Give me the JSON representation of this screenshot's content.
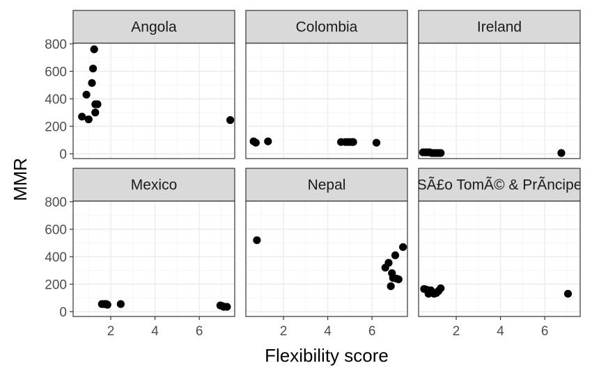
{
  "chart_data": {
    "type": "scatter",
    "facet": "wrap",
    "ncol": 3,
    "xlabel": "Flexibility score",
    "ylabel": "MMR",
    "xlim": [
      0.3,
      7.6
    ],
    "ylim": [
      -40,
      800
    ],
    "x_ticks": [
      2,
      4,
      6
    ],
    "y_ticks": [
      0,
      200,
      400,
      600,
      800
    ],
    "grid": true,
    "shared_axes": true,
    "colors": {
      "point": "#000000",
      "strip_fill": "#d9d9d9",
      "panel_border": "#333333",
      "grid_major": "#ebebeb",
      "grid_minor": "#f5f5f5"
    },
    "facets": [
      {
        "label": "Angola",
        "x": [
          0.7,
          0.9,
          1.0,
          1.15,
          1.2,
          1.25,
          1.3,
          1.3,
          1.4,
          7.4
        ],
        "y": [
          270,
          430,
          250,
          515,
          620,
          760,
          300,
          360,
          360,
          245
        ]
      },
      {
        "label": "Colombia",
        "x": [
          0.65,
          0.75,
          1.3,
          4.6,
          4.8,
          4.9,
          5.0,
          5.1,
          5.15,
          6.2
        ],
        "y": [
          90,
          80,
          90,
          85,
          85,
          85,
          85,
          85,
          85,
          80
        ]
      },
      {
        "label": "Ireland",
        "x": [
          0.5,
          0.6,
          0.7,
          0.8,
          0.9,
          1.0,
          1.1,
          1.2,
          1.3,
          6.75
        ],
        "y": [
          10,
          10,
          10,
          10,
          5,
          5,
          5,
          5,
          5,
          5
        ]
      },
      {
        "label": "Mexico",
        "x": [
          1.6,
          1.7,
          1.75,
          1.8,
          1.85,
          2.45,
          6.95,
          7.05,
          7.1,
          7.25
        ],
        "y": [
          55,
          55,
          55,
          55,
          50,
          55,
          45,
          40,
          35,
          35
        ]
      },
      {
        "label": "Nepal",
        "x": [
          0.8,
          6.6,
          6.75,
          6.85,
          6.9,
          6.95,
          7.05,
          7.1,
          7.2,
          7.4
        ],
        "y": [
          520,
          320,
          355,
          185,
          280,
          245,
          410,
          240,
          235,
          470
        ]
      },
      {
        "label": "SÃ£o TomÃ© & PrÃ­ncipe",
        "x": [
          0.55,
          0.65,
          0.75,
          0.85,
          0.9,
          1.0,
          1.1,
          1.2,
          1.3,
          7.05
        ],
        "y": [
          165,
          160,
          130,
          155,
          145,
          130,
          135,
          150,
          170,
          130
        ]
      }
    ]
  }
}
